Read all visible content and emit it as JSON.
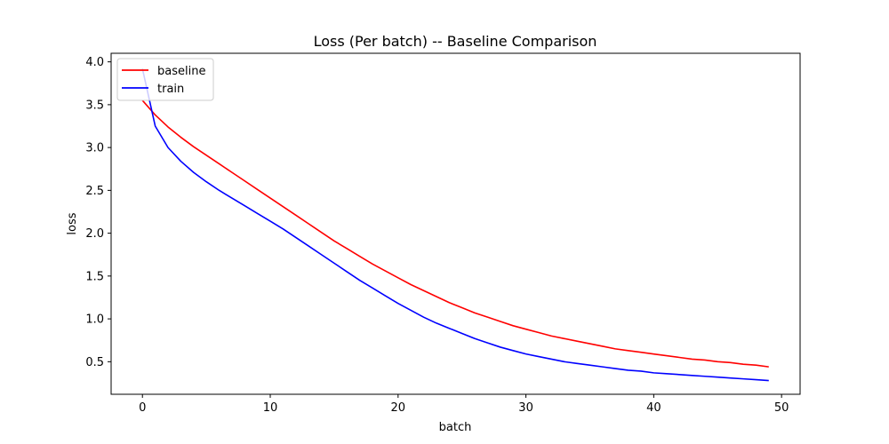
{
  "chart_data": {
    "type": "line",
    "title": "Loss (Per batch) -- Baseline Comparison",
    "xlabel": "batch",
    "ylabel": "loss",
    "xlim": [
      -2.45,
      51.45
    ],
    "ylim": [
      0.12,
      4.1
    ],
    "xticks": [
      0,
      10,
      20,
      30,
      40,
      50
    ],
    "xtick_labels": [
      "0",
      "10",
      "20",
      "30",
      "40",
      "50"
    ],
    "yticks": [
      0.5,
      1.0,
      1.5,
      2.0,
      2.5,
      3.0,
      3.5,
      4.0
    ],
    "ytick_labels": [
      "0.5",
      "1.0",
      "1.5",
      "2.0",
      "2.5",
      "3.0",
      "3.5",
      "4.0"
    ],
    "grid": false,
    "legend_position": "top-left",
    "x": [
      0,
      1,
      2,
      3,
      4,
      5,
      6,
      7,
      8,
      9,
      10,
      11,
      12,
      13,
      14,
      15,
      16,
      17,
      18,
      19,
      20,
      21,
      22,
      23,
      24,
      25,
      26,
      27,
      28,
      29,
      30,
      31,
      32,
      33,
      34,
      35,
      36,
      37,
      38,
      39,
      40,
      41,
      42,
      43,
      44,
      45,
      46,
      47,
      48,
      49
    ],
    "series": [
      {
        "name": "baseline",
        "color": "#ff0000",
        "values": [
          3.55,
          3.38,
          3.24,
          3.12,
          3.01,
          2.91,
          2.81,
          2.71,
          2.61,
          2.51,
          2.41,
          2.31,
          2.21,
          2.11,
          2.01,
          1.91,
          1.82,
          1.73,
          1.64,
          1.56,
          1.48,
          1.4,
          1.33,
          1.26,
          1.19,
          1.13,
          1.07,
          1.02,
          0.97,
          0.92,
          0.88,
          0.84,
          0.8,
          0.77,
          0.74,
          0.71,
          0.68,
          0.65,
          0.63,
          0.61,
          0.59,
          0.57,
          0.55,
          0.53,
          0.52,
          0.5,
          0.49,
          0.47,
          0.46,
          0.44
        ]
      },
      {
        "name": "train",
        "color": "#0000ff",
        "values": [
          3.92,
          3.25,
          3.0,
          2.84,
          2.71,
          2.6,
          2.5,
          2.41,
          2.32,
          2.23,
          2.14,
          2.05,
          1.95,
          1.85,
          1.75,
          1.65,
          1.55,
          1.45,
          1.36,
          1.27,
          1.18,
          1.1,
          1.02,
          0.95,
          0.89,
          0.83,
          0.77,
          0.72,
          0.67,
          0.63,
          0.59,
          0.56,
          0.53,
          0.5,
          0.48,
          0.46,
          0.44,
          0.42,
          0.4,
          0.39,
          0.37,
          0.36,
          0.35,
          0.34,
          0.33,
          0.32,
          0.31,
          0.3,
          0.29,
          0.28
        ]
      }
    ]
  }
}
